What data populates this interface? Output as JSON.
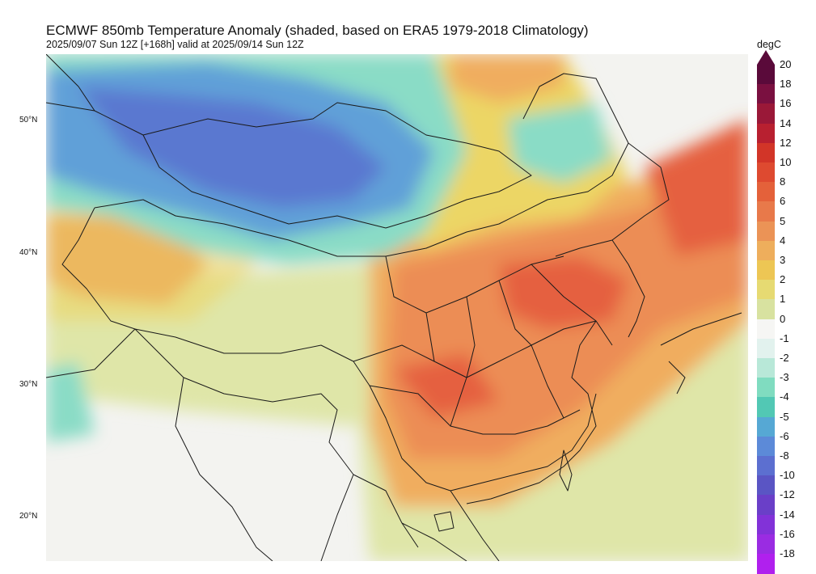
{
  "title": "ECMWF 850mb Temperature Anomaly (shaded, based on ERA5 1979-2018 Climatology)",
  "subtitle": "2025/09/07 Sun 12Z [+168h] valid at 2025/09/14 Sun 12Z",
  "latitude_labels": [
    "50°N",
    "40°N",
    "30°N",
    "20°N"
  ],
  "colorbar": {
    "unit": "degC",
    "levels": [
      "20",
      "18",
      "16",
      "14",
      "12",
      "10",
      "8",
      "6",
      "5",
      "4",
      "3",
      "2",
      "1",
      "0",
      "-1",
      "-2",
      "-3",
      "-4",
      "-5",
      "-6",
      "-8",
      "-10",
      "-12",
      "-14",
      "-16",
      "-18"
    ],
    "colors": [
      "#5a0a3a",
      "#7a1040",
      "#9a1838",
      "#b82030",
      "#d23528",
      "#de4a30",
      "#e4613a",
      "#e8794a",
      "#eb9356",
      "#eeae5c",
      "#edc654",
      "#e6da72",
      "#d8e2a0",
      "#f6f6f4",
      "#e2f2ee",
      "#b8e8d8",
      "#80dcc0",
      "#52c8b4",
      "#56a8d4",
      "#5c8ad8",
      "#5c6fd0",
      "#5a55c4",
      "#6a3fc8",
      "#8232d8",
      "#9a2ce2",
      "#b020ee"
    ]
  },
  "map_colors": {
    "land_bg": "#f3f3f0",
    "ocean_bg": "#edf2e4",
    "warm_core": "#e5603f",
    "warm": "#ec8d55",
    "orange": "#f0ad5e",
    "yellow": "#ecd665",
    "light_yellow": "#dfe6a8",
    "cool": "#8adcc6",
    "cold": "#60a0d8",
    "colder": "#5a78d0",
    "border": "#1a1a1a"
  }
}
